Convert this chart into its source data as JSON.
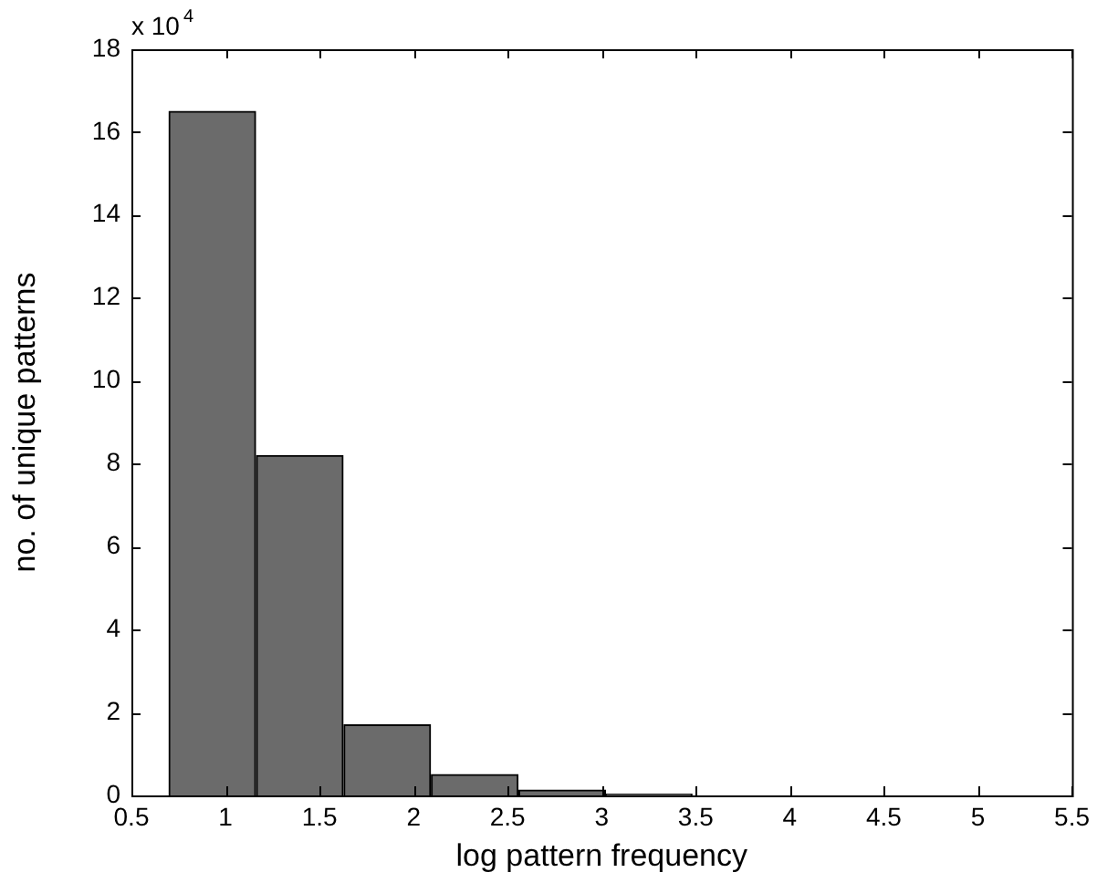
{
  "chart_data": {
    "type": "histogram",
    "xlabel": "log pattern frequency",
    "ylabel": "no. of unique patterns",
    "annotations": [
      "x 10$^{4}$"
    ],
    "bins": [
      0.7,
      1.16,
      1.63,
      2.09,
      2.56,
      3.02,
      3.48,
      3.95,
      4.41,
      4.88,
      5.34
    ],
    "values": [
      16.5,
      8.2,
      1.7,
      0.5,
      0.13,
      0.03,
      0,
      0,
      0,
      0
    ],
    "color": "#6b6b6b",
    "xlim": [
      0.5,
      5.5
    ],
    "xticks": [
      0.5,
      1,
      1.5,
      2,
      2.5,
      3,
      3.5,
      4,
      4.5,
      5,
      5.5
    ],
    "ylim": [
      0,
      18
    ],
    "yticks": [
      0,
      2,
      4,
      6,
      8,
      10,
      12,
      14,
      16,
      18
    ],
    "grid": false,
    "legend": false
  }
}
